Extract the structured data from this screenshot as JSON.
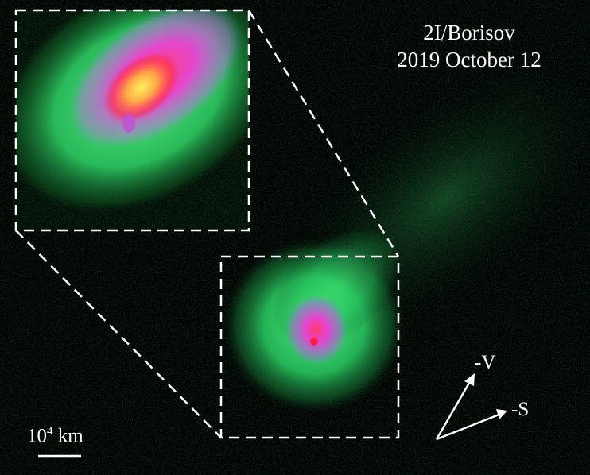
{
  "title": {
    "line1": "2I/Borisov",
    "line2": "2019 October 12"
  },
  "scale_bar": {
    "label_base": "10",
    "label_exp": "4",
    "label_unit": " km"
  },
  "direction_arrows": {
    "velocity_label": "-V",
    "sun_label": "-S"
  },
  "colors": {
    "background": "#000000",
    "coma_outer": "#2fe06a",
    "coma_mid": "#e24ad8",
    "coma_core": "#ff2a55",
    "nucleus": "#ffe94a",
    "annotation": "#ffffff"
  }
}
